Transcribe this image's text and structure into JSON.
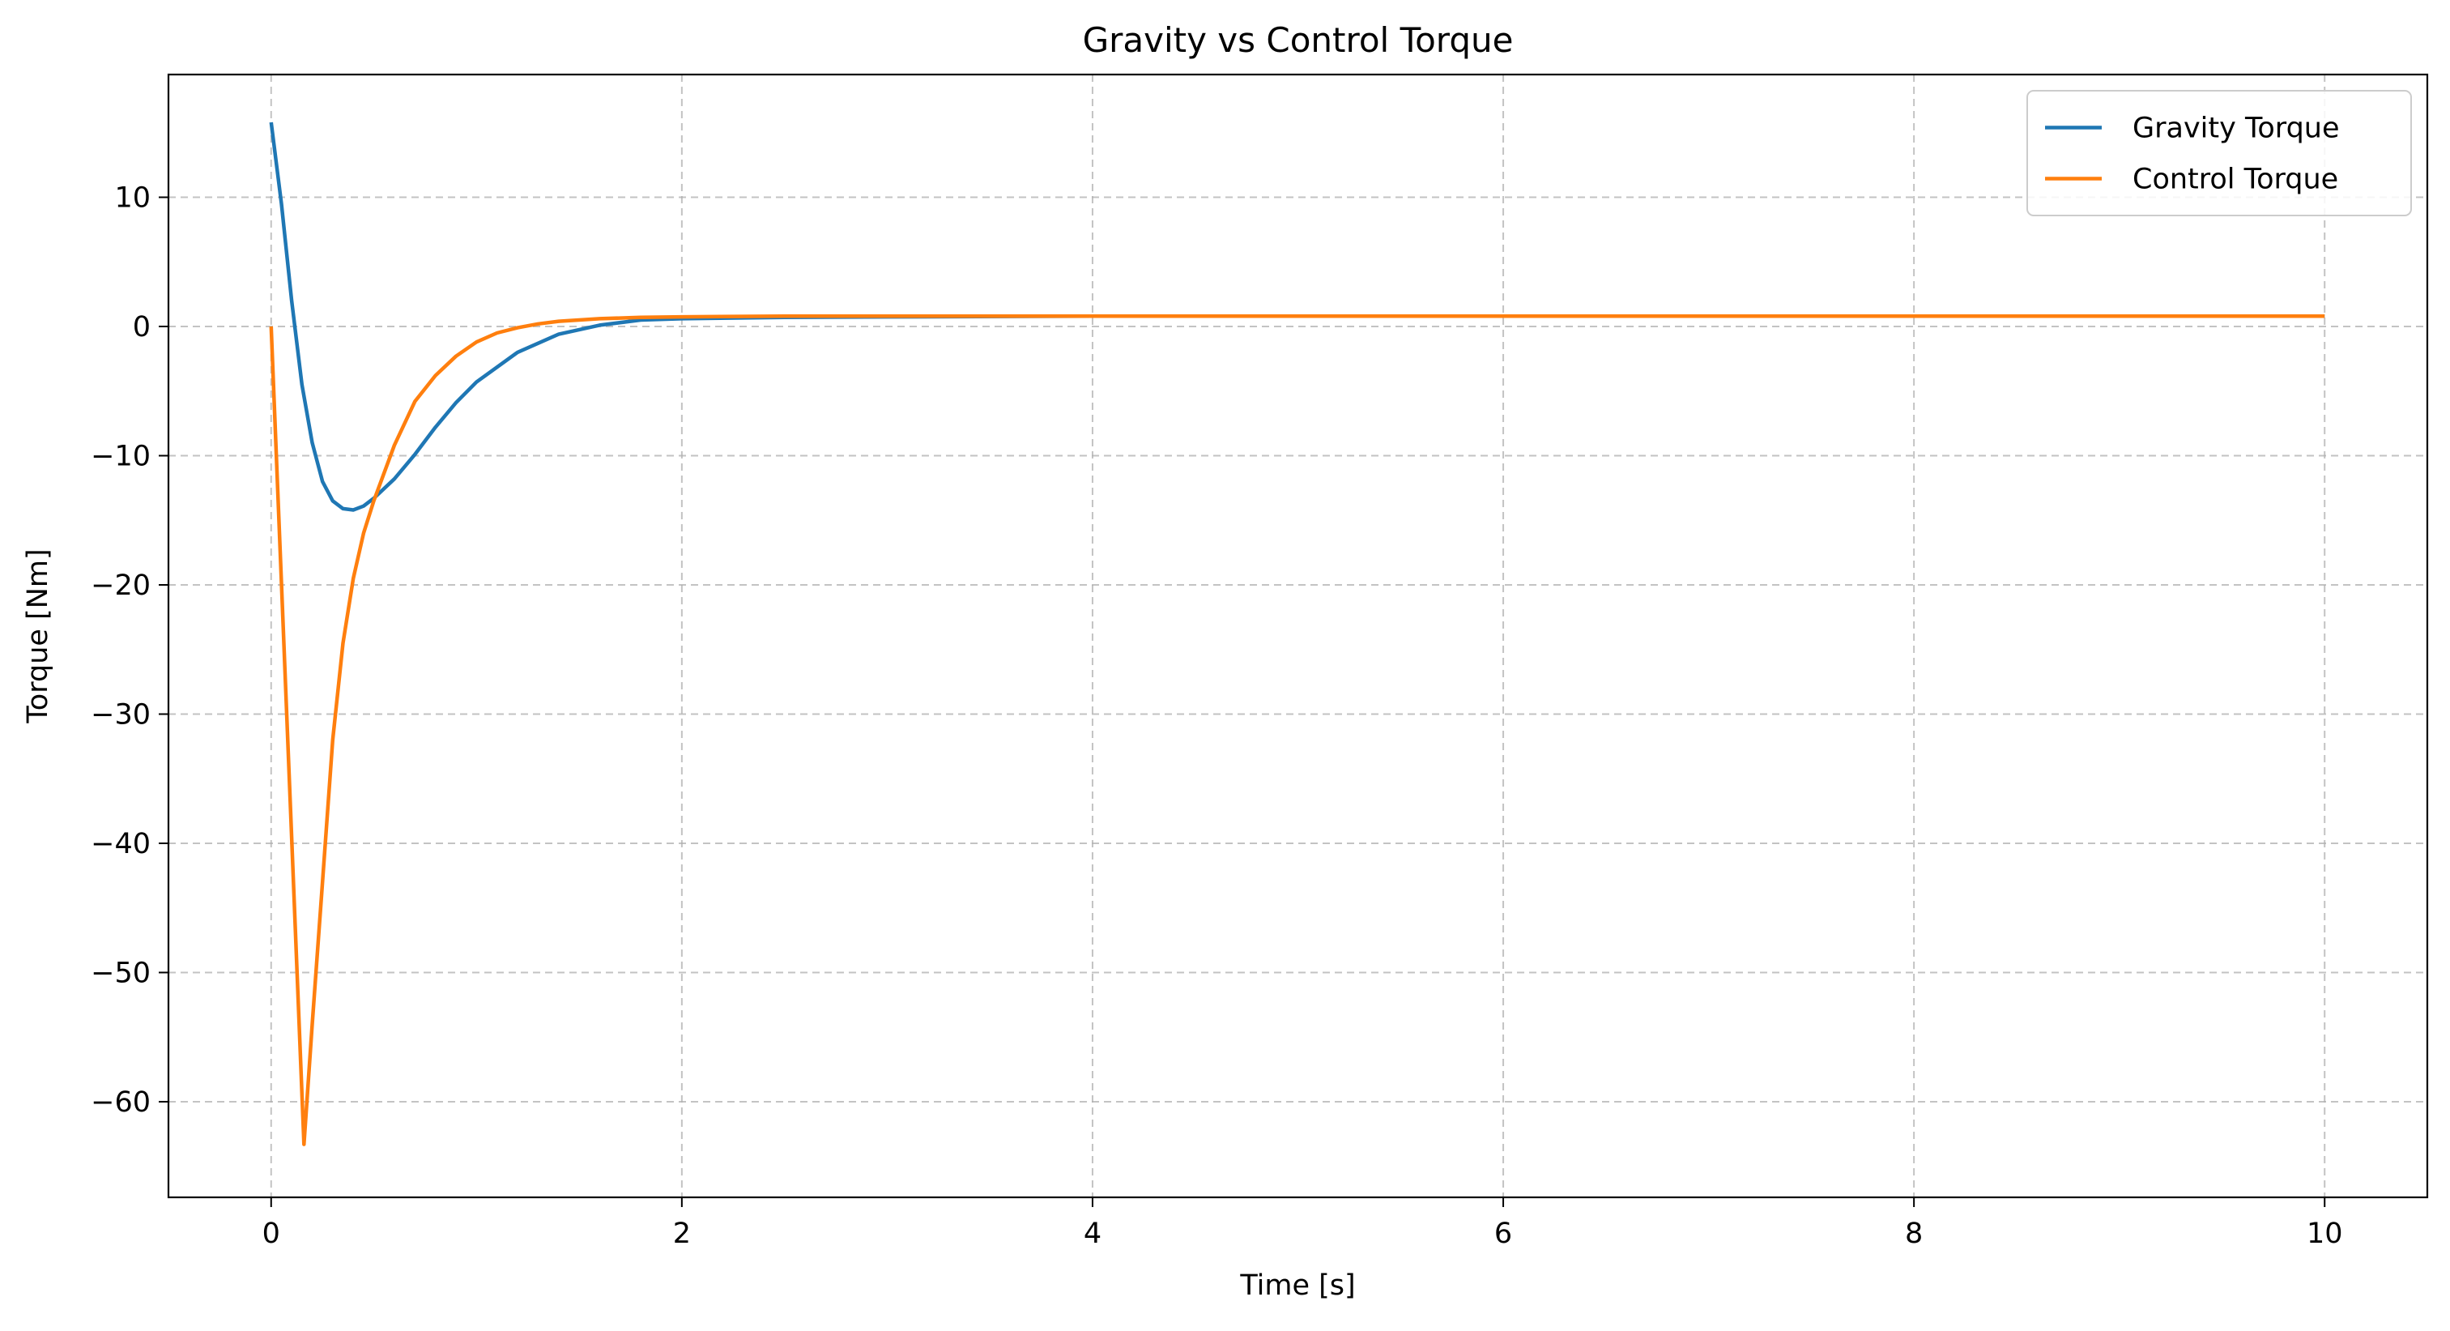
{
  "chart_data": {
    "type": "line",
    "title": "Gravity vs Control Torque",
    "xlabel": "Time [s]",
    "ylabel": "Torque [Nm]",
    "xlim": [
      -0.5,
      10.5
    ],
    "ylim": [
      -67.4,
      19.5
    ],
    "xticks": [
      0,
      2,
      4,
      6,
      8,
      10
    ],
    "xtick_labels": [
      "0",
      "2",
      "4",
      "6",
      "8",
      "10"
    ],
    "yticks": [
      10,
      0,
      -10,
      -20,
      -30,
      -40,
      -50,
      -60
    ],
    "ytick_labels": [
      "10",
      "0",
      "−10",
      "−20",
      "−30",
      "−40",
      "−50",
      "−60"
    ],
    "grid": true,
    "legend_position": "top-right",
    "series": [
      {
        "name": "Gravity Torque",
        "color": "#1f77b4",
        "x": [
          0,
          0.05,
          0.1,
          0.15,
          0.2,
          0.25,
          0.3,
          0.35,
          0.4,
          0.45,
          0.5,
          0.6,
          0.7,
          0.8,
          0.9,
          1.0,
          1.2,
          1.4,
          1.6,
          1.8,
          2.0,
          2.5,
          3.0,
          4.0,
          6.0,
          8.0,
          10.0
        ],
        "y": [
          15.8,
          9.5,
          2.0,
          -4.5,
          -9.0,
          -12.0,
          -13.5,
          -14.1,
          -14.2,
          -13.9,
          -13.3,
          -11.8,
          -9.9,
          -7.8,
          -5.9,
          -4.3,
          -2.0,
          -0.6,
          0.1,
          0.5,
          0.6,
          0.7,
          0.75,
          0.8,
          0.8,
          0.8,
          0.8
        ]
      },
      {
        "name": "Control Torque",
        "color": "#ff7f0e",
        "x": [
          0,
          0.16,
          0.2,
          0.25,
          0.3,
          0.35,
          0.4,
          0.45,
          0.5,
          0.6,
          0.7,
          0.8,
          0.9,
          1.0,
          1.1,
          1.2,
          1.3,
          1.4,
          1.6,
          1.8,
          2.0,
          2.5,
          3.0,
          4.0,
          6.0,
          8.0,
          10.0
        ],
        "y": [
          0,
          -63.3,
          -54.0,
          -43.0,
          -32.0,
          -24.5,
          -19.5,
          -16.0,
          -13.5,
          -9.2,
          -5.8,
          -3.8,
          -2.3,
          -1.2,
          -0.5,
          -0.1,
          0.2,
          0.4,
          0.6,
          0.7,
          0.75,
          0.8,
          0.8,
          0.8,
          0.8,
          0.8,
          0.8
        ]
      }
    ]
  }
}
